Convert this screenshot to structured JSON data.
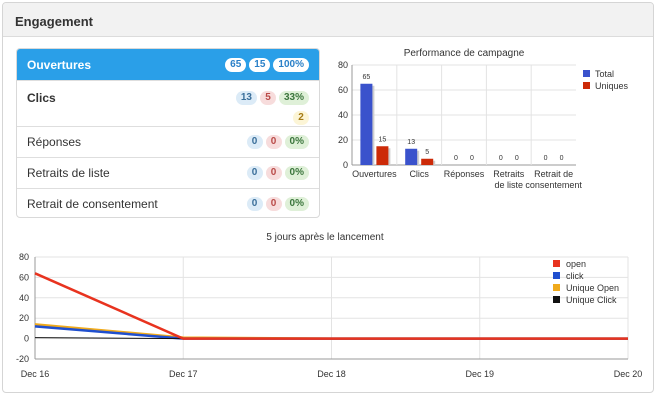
{
  "panel": {
    "title": "Engagement"
  },
  "list": [
    {
      "label": "Ouvertures",
      "badges": [
        "65",
        "15",
        "100%"
      ]
    },
    {
      "label": "Clics",
      "badges": [
        "13",
        "5",
        "33%"
      ],
      "extra": "2"
    },
    {
      "label": "Réponses",
      "badges": [
        "0",
        "0",
        "0%"
      ]
    },
    {
      "label": "Retraits de liste",
      "badges": [
        "0",
        "0",
        "0%"
      ]
    },
    {
      "label": "Retrait de consentement",
      "badges": [
        "0",
        "0",
        "0%"
      ]
    }
  ],
  "colors": {
    "accent": "#2a9fe8",
    "total": "#3a52cc",
    "uniques": "#cc2a08",
    "open": "#e8331f",
    "click": "#1f4fcf",
    "unique_open": "#f0aa1b",
    "unique_click": "#111111"
  },
  "chart_data": [
    {
      "type": "bar",
      "title": "Performance de campagne",
      "categories": [
        [
          "Ouvertures"
        ],
        [
          "Clics"
        ],
        [
          "Réponses"
        ],
        [
          "Retraits",
          "de liste"
        ],
        [
          "Retrait de",
          "consentement"
        ]
      ],
      "series": [
        {
          "name": "Total",
          "values": [
            65,
            13,
            0,
            0,
            0
          ]
        },
        {
          "name": "Uniques",
          "values": [
            15,
            5,
            0,
            0,
            0
          ]
        }
      ],
      "ylim": [
        0,
        80
      ],
      "yticks": [
        "0",
        "20",
        "40",
        "60",
        "80"
      ],
      "legend": "right"
    },
    {
      "type": "line",
      "title": "5 jours après le lancement",
      "x": [
        "Dec 16",
        "Dec 17",
        "Dec 18",
        "Dec 19",
        "Dec 20"
      ],
      "series": [
        {
          "name": "open",
          "values": [
            64,
            0,
            0,
            0,
            0
          ]
        },
        {
          "name": "click",
          "values": [
            12,
            0,
            0,
            0,
            0
          ]
        },
        {
          "name": "Unique Open",
          "values": [
            14,
            1,
            0,
            0,
            0
          ]
        },
        {
          "name": "Unique Click",
          "values": [
            1,
            0,
            0,
            0,
            0
          ]
        }
      ],
      "ylim": [
        -20,
        80
      ],
      "yticks": [
        "-20",
        "0",
        "20",
        "40",
        "60",
        "80"
      ],
      "legend": "top-right"
    }
  ]
}
